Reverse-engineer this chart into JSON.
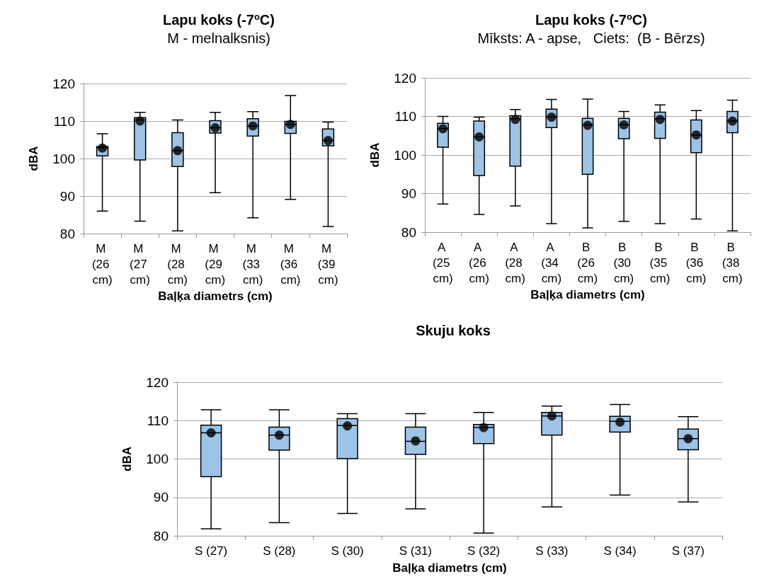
{
  "chart_data": [
    {
      "type": "box",
      "title": "Lapu koks (-7$^{o}$C)",
      "subtitle": "M - melnalksnis)",
      "xlabel": "Baļķa diametrs (cm)",
      "ylabel": "dBA",
      "categories": [
        "M (26 cm)",
        "M (27 cm)",
        "M (28 cm)",
        "M (29 cm)",
        "M (33 cm)",
        "M (36 cm)",
        "M (39 cm)"
      ],
      "series": [
        {
          "color": "#9dc3e6",
          "boxes": [
            {
              "low": 86.0,
              "q1": 100.7,
              "median": 102.9,
              "q3": 103.2,
              "high": 106.6,
              "mean": 102.8
            },
            {
              "low": 83.3,
              "q1": 99.6,
              "median": 110.3,
              "q3": 110.9,
              "high": 112.3,
              "mean": 110.0
            },
            {
              "low": 80.7,
              "q1": 97.9,
              "median": 102.1,
              "q3": 106.9,
              "high": 110.3,
              "mean": 102.1
            },
            {
              "low": 90.9,
              "q1": 106.8,
              "median": 108.2,
              "q3": 110.1,
              "high": 112.3,
              "mean": 108.2
            },
            {
              "low": 84.2,
              "q1": 106.0,
              "median": 108.7,
              "q3": 110.6,
              "high": 112.5,
              "mean": 108.7
            },
            {
              "low": 89.1,
              "q1": 106.7,
              "median": 109.1,
              "q3": 109.9,
              "high": 116.8,
              "mean": 109.1
            },
            {
              "low": 81.9,
              "q1": 103.4,
              "median": 104.8,
              "q3": 107.9,
              "high": 109.7,
              "mean": 104.8
            }
          ]
        }
      ],
      "ylim": [
        80,
        120
      ],
      "yticks": [
        80,
        90,
        100,
        110,
        120
      ],
      "grid": "y",
      "marker": "circle"
    },
    {
      "type": "box",
      "title": "Lapu koks (-7$^{o}$C)",
      "subtitle": "Mīksts: A - apse,   Ciets:  (B - Bērzs)",
      "xlabel": "Baļķa diametrs (cm)",
      "ylabel": "dBA",
      "categories": [
        "A (25 cm)",
        "A (26 cm)",
        "A (28 cm)",
        "A (34 cm)",
        "B (26 cm)",
        "B (30 cm)",
        "B (35 cm)",
        "B (36 cm)",
        "B (38 cm)"
      ],
      "series": [
        {
          "color": "#9dc3e6",
          "boxes": [
            {
              "low": 87.3,
              "q1": 102.0,
              "median": 106.9,
              "q3": 108.2,
              "high": 110.0,
              "mean": 106.8
            },
            {
              "low": 84.6,
              "q1": 94.7,
              "median": 104.7,
              "q3": 108.8,
              "high": 109.8,
              "mean": 104.7
            },
            {
              "low": 86.8,
              "q1": 97.1,
              "median": 109.4,
              "q3": 110.2,
              "high": 111.8,
              "mean": 109.2
            },
            {
              "low": 82.2,
              "q1": 107.1,
              "median": 109.9,
              "q3": 111.9,
              "high": 114.4,
              "mean": 109.8
            },
            {
              "low": 81.1,
              "q1": 95.0,
              "median": 107.8,
              "q3": 109.5,
              "high": 114.5,
              "mean": 107.7
            },
            {
              "low": 82.8,
              "q1": 104.2,
              "median": 107.9,
              "q3": 109.5,
              "high": 111.3,
              "mean": 107.8
            },
            {
              "low": 82.2,
              "q1": 104.3,
              "median": 109.4,
              "q3": 111.1,
              "high": 113.0,
              "mean": 109.2
            },
            {
              "low": 83.4,
              "q1": 100.6,
              "median": 105.2,
              "q3": 109.1,
              "high": 111.5,
              "mean": 105.2
            },
            {
              "low": 80.3,
              "q1": 105.8,
              "median": 108.8,
              "q3": 111.3,
              "high": 114.2,
              "mean": 108.8
            }
          ]
        }
      ],
      "ylim": [
        80,
        120
      ],
      "yticks": [
        80,
        90,
        100,
        110,
        120
      ],
      "grid": "y",
      "marker": "circle"
    },
    {
      "type": "box",
      "title": "Skuju koks",
      "xlabel": "Baļķa diametrs (cm)",
      "ylabel": "dBA",
      "categories": [
        "S (27)",
        "S (28)",
        "S (30)",
        "S (31)",
        "S (32)",
        "S (33)",
        "S (34)",
        "S (37)"
      ],
      "series": [
        {
          "color": "#9dc3e6",
          "boxes": [
            {
              "low": 81.8,
              "q1": 95.4,
              "median": 106.8,
              "q3": 108.8,
              "high": 112.8,
              "mean": 106.8
            },
            {
              "low": 83.4,
              "q1": 102.3,
              "median": 106.2,
              "q3": 108.3,
              "high": 112.8,
              "mean": 106.2
            },
            {
              "low": 85.8,
              "q1": 100.1,
              "median": 108.7,
              "q3": 110.5,
              "high": 111.8,
              "mean": 108.6
            },
            {
              "low": 87.0,
              "q1": 101.2,
              "median": 104.6,
              "q3": 108.3,
              "high": 111.8,
              "mean": 104.7
            },
            {
              "low": 80.7,
              "q1": 104.0,
              "median": 108.2,
              "q3": 109.0,
              "high": 112.1,
              "mean": 108.2
            },
            {
              "low": 87.5,
              "q1": 106.2,
              "median": 111.2,
              "q3": 112.1,
              "high": 113.8,
              "mean": 111.2
            },
            {
              "low": 90.6,
              "q1": 107.0,
              "median": 109.8,
              "q3": 111.1,
              "high": 114.2,
              "mean": 109.6
            },
            {
              "low": 88.8,
              "q1": 102.4,
              "median": 105.3,
              "q3": 107.8,
              "high": 111.0,
              "mean": 105.3
            }
          ]
        }
      ],
      "ylim": [
        80,
        120
      ],
      "yticks": [
        80,
        90,
        100,
        110,
        120
      ],
      "grid": "y",
      "marker": "circle"
    }
  ]
}
